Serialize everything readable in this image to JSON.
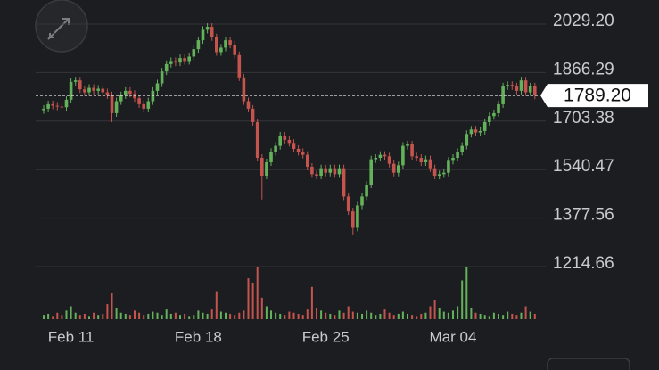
{
  "chart_data": {
    "type": "candlestick",
    "categories": [
      null,
      null,
      null,
      null,
      null,
      null,
      "Feb 11",
      null,
      null,
      null,
      null,
      null,
      null,
      null,
      null,
      null,
      null,
      null,
      null,
      null,
      null,
      null,
      null,
      null,
      null,
      null,
      null,
      null,
      null,
      null,
      null,
      null,
      null,
      null,
      "Feb 18",
      null,
      null,
      null,
      null,
      null,
      null,
      null,
      null,
      null,
      null,
      null,
      null,
      null,
      null,
      null,
      null,
      null,
      null,
      null,
      null,
      null,
      null,
      null,
      null,
      null,
      null,
      null,
      "Feb 25",
      null,
      null,
      null,
      null,
      null,
      null,
      null,
      null,
      null,
      null,
      null,
      null,
      null,
      null,
      null,
      null,
      null,
      null,
      null,
      null,
      null,
      null,
      null,
      null,
      null,
      null,
      null,
      "Mar 04",
      null,
      null,
      null,
      null,
      null,
      null,
      null,
      null,
      null,
      null,
      null,
      null,
      null,
      null,
      null,
      null,
      null,
      null
    ],
    "open": [
      1740,
      1745,
      1760,
      1755,
      1752,
      1750,
      1775,
      1835,
      1840,
      1810,
      1800,
      1815,
      1805,
      1812,
      1800,
      1790,
      1730,
      1770,
      1790,
      1805,
      1795,
      1780,
      1760,
      1745,
      1770,
      1805,
      1830,
      1870,
      1895,
      1905,
      1900,
      1915,
      1905,
      1920,
      1945,
      1975,
      2010,
      2020,
      1985,
      1935,
      1950,
      1975,
      1960,
      1925,
      1850,
      1770,
      1745,
      1700,
      1580,
      1520,
      1565,
      1600,
      1620,
      1655,
      1640,
      1630,
      1610,
      1600,
      1590,
      1550,
      1525,
      1520,
      1545,
      1530,
      1545,
      1525,
      1545,
      1450,
      1400,
      1345,
      1420,
      1450,
      1490,
      1575,
      1580,
      1590,
      1585,
      1560,
      1530,
      1555,
      1620,
      1625,
      1585,
      1580,
      1565,
      1575,
      1545,
      1520,
      1525,
      1530,
      1570,
      1580,
      1600,
      1620,
      1660,
      1675,
      1665,
      1670,
      1700,
      1720,
      1730,
      1760,
      1820,
      1825,
      1820,
      1805,
      1840,
      1800,
      1820
    ],
    "high": [
      1757,
      1772,
      1772,
      1767,
      1764,
      1787,
      1847,
      1852,
      1852,
      1822,
      1827,
      1827,
      1824,
      1824,
      1812,
      1802,
      1782,
      1802,
      1817,
      1817,
      1807,
      1792,
      1772,
      1782,
      1817,
      1842,
      1882,
      1907,
      1917,
      1917,
      1927,
      1927,
      1932,
      1957,
      1987,
      2022,
      2032,
      2032,
      1997,
      1962,
      1987,
      1987,
      1972,
      1937,
      1862,
      1782,
      1757,
      1712,
      1592,
      1577,
      1612,
      1632,
      1667,
      1667,
      1652,
      1642,
      1622,
      1612,
      1602,
      1562,
      1537,
      1557,
      1557,
      1557,
      1557,
      1557,
      1557,
      1462,
      1412,
      1432,
      1462,
      1502,
      1587,
      1592,
      1602,
      1602,
      1597,
      1572,
      1567,
      1632,
      1637,
      1637,
      1597,
      1592,
      1587,
      1587,
      1557,
      1537,
      1542,
      1582,
      1592,
      1612,
      1632,
      1672,
      1687,
      1687,
      1682,
      1712,
      1732,
      1742,
      1772,
      1832,
      1837,
      1837,
      1832,
      1852,
      1852,
      1832,
      1832
    ],
    "low": [
      1728,
      1733,
      1743,
      1740,
      1738,
      1738,
      1763,
      1823,
      1798,
      1788,
      1788,
      1793,
      1793,
      1788,
      1778,
      1700,
      1718,
      1758,
      1778,
      1783,
      1768,
      1748,
      1733,
      1733,
      1758,
      1793,
      1818,
      1858,
      1883,
      1888,
      1888,
      1893,
      1893,
      1908,
      1933,
      1963,
      1998,
      1973,
      1923,
      1923,
      1938,
      1948,
      1913,
      1838,
      1758,
      1733,
      1688,
      1568,
      1440,
      1508,
      1553,
      1588,
      1608,
      1628,
      1618,
      1598,
      1588,
      1578,
      1538,
      1513,
      1508,
      1508,
      1518,
      1518,
      1513,
      1513,
      1438,
      1388,
      1320,
      1333,
      1408,
      1438,
      1478,
      1563,
      1568,
      1573,
      1548,
      1518,
      1518,
      1543,
      1608,
      1573,
      1568,
      1553,
      1553,
      1533,
      1508,
      1508,
      1513,
      1518,
      1558,
      1568,
      1588,
      1608,
      1648,
      1653,
      1653,
      1658,
      1688,
      1708,
      1718,
      1748,
      1808,
      1808,
      1793,
      1793,
      1788,
      1788,
      1777
    ],
    "close": [
      1745,
      1760,
      1755,
      1752,
      1750,
      1775,
      1835,
      1840,
      1810,
      1800,
      1815,
      1805,
      1812,
      1800,
      1790,
      1730,
      1770,
      1790,
      1805,
      1795,
      1780,
      1760,
      1745,
      1770,
      1805,
      1830,
      1870,
      1895,
      1905,
      1900,
      1915,
      1905,
      1920,
      1945,
      1975,
      2010,
      2020,
      1985,
      1935,
      1950,
      1975,
      1960,
      1925,
      1850,
      1770,
      1745,
      1700,
      1580,
      1520,
      1565,
      1600,
      1620,
      1655,
      1640,
      1630,
      1610,
      1600,
      1590,
      1550,
      1525,
      1520,
      1545,
      1530,
      1545,
      1525,
      1545,
      1450,
      1400,
      1345,
      1420,
      1450,
      1490,
      1575,
      1580,
      1590,
      1585,
      1560,
      1530,
      1555,
      1620,
      1625,
      1585,
      1580,
      1565,
      1575,
      1545,
      1520,
      1525,
      1530,
      1570,
      1580,
      1600,
      1620,
      1660,
      1675,
      1665,
      1670,
      1700,
      1720,
      1730,
      1760,
      1820,
      1825,
      1820,
      1805,
      1840,
      1800,
      1820,
      1789.2
    ],
    "volume": [
      4,
      5,
      3,
      6,
      4,
      8,
      12,
      6,
      4,
      5,
      3,
      6,
      4,
      5,
      14,
      24,
      10,
      6,
      5,
      4,
      8,
      6,
      4,
      5,
      7,
      6,
      4,
      9,
      5,
      6,
      4,
      5,
      3,
      4,
      8,
      6,
      5,
      9,
      26,
      7,
      6,
      5,
      4,
      6,
      8,
      38,
      34,
      48,
      20,
      12,
      8,
      6,
      5,
      4,
      7,
      6,
      5,
      4,
      9,
      30,
      10,
      8,
      6,
      5,
      4,
      8,
      6,
      12,
      7,
      6,
      5,
      8,
      6,
      4,
      5,
      9,
      6,
      4,
      5,
      7,
      5,
      4,
      3,
      5,
      6,
      12,
      18,
      10,
      7,
      6,
      8,
      12,
      36,
      48,
      10,
      6,
      5,
      4,
      3,
      6,
      5,
      4,
      7,
      5,
      4,
      6,
      12,
      7,
      5
    ],
    "up_color": "#64b15b",
    "down_color": "#c4544d",
    "ylim": [
      1214.66,
      2029.2
    ],
    "yticks": [
      {
        "value": 2029.2,
        "label": "2029.20"
      },
      1866.29,
      1703.38,
      1540.47,
      1377.56,
      1214.66
    ],
    "grid": true,
    "current_price": {
      "value": 1789.2,
      "label": "1789.20"
    }
  }
}
